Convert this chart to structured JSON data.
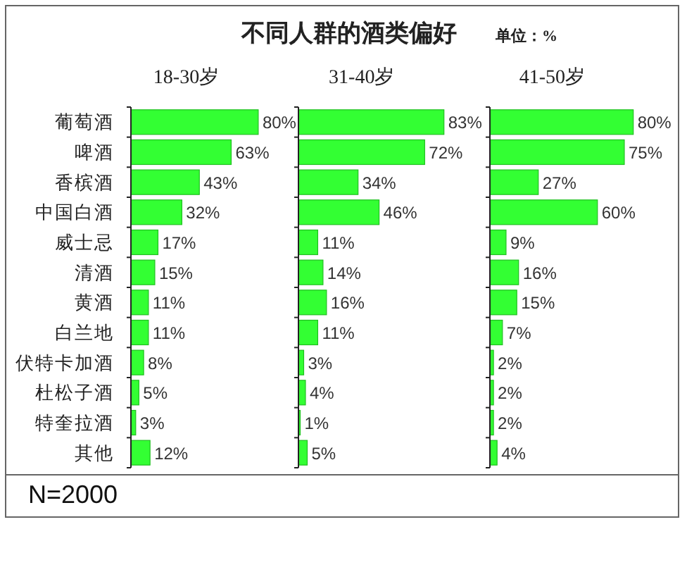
{
  "chart_data": [
    {
      "type": "bar",
      "orientation": "horizontal",
      "categories": [
        "葡萄酒",
        "啤酒",
        "香槟酒",
        "中国白酒",
        "威士忌",
        "清酒",
        "黄酒",
        "白兰地",
        "伏特卡加酒",
        "杜松子酒",
        "特奎拉酒",
        "其他"
      ],
      "series": [
        {
          "name": "18-30岁",
          "color": "#33ff33",
          "values": [
            80,
            63,
            43,
            32,
            17,
            15,
            11,
            11,
            8,
            5,
            3,
            12
          ],
          "value_labels": [
            "80%",
            "63%",
            "43%",
            "32%",
            "17%",
            "15%",
            "11%",
            "11%",
            "8%",
            "5%",
            "3%",
            "12%"
          ]
        }
      ],
      "tick_labels": "y",
      "annotations": [
        "N=2000"
      ]
    },
    {
      "type": "bar",
      "orientation": "horizontal",
      "title": "不同人群的酒类偏好",
      "categories": [
        null,
        null,
        null,
        null,
        null,
        null,
        null,
        null,
        null,
        null,
        null,
        null
      ],
      "series": [
        {
          "name": "31-40岁",
          "color": "#33ff33",
          "values": [
            83,
            72,
            34,
            46,
            11,
            14,
            16,
            11,
            3,
            4,
            1,
            5
          ],
          "value_labels": [
            "83%",
            "72%",
            "34%",
            "46%",
            "11%",
            "14%",
            "16%",
            "11%",
            "3%",
            "4%",
            "1%",
            "5%"
          ]
        }
      ]
    },
    {
      "type": "bar",
      "orientation": "horizontal",
      "subtitle": "单位：%",
      "categories": [
        null,
        null,
        null,
        null,
        null,
        null,
        null,
        null,
        null,
        null,
        null,
        null
      ],
      "series": [
        {
          "name": "41-50岁",
          "color": "#33ff33",
          "values": [
            80,
            75,
            27,
            60,
            9,
            16,
            15,
            7,
            2,
            2,
            2,
            4
          ],
          "value_labels": [
            "80%",
            "75%",
            "27%",
            "60%",
            "9%",
            "16%",
            "15%",
            "7%",
            "2%",
            "2%",
            "2%",
            "4%"
          ]
        }
      ]
    }
  ]
}
